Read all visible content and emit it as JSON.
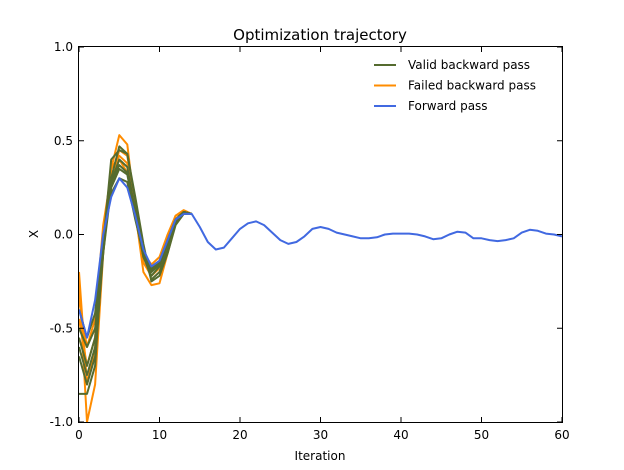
{
  "chart_data": {
    "type": "line",
    "title": "Optimization trajectory",
    "xlabel": "Iteration",
    "ylabel": "X",
    "xlim": [
      0,
      60
    ],
    "ylim": [
      -1.0,
      1.0
    ],
    "xticks": [
      0,
      10,
      20,
      30,
      40,
      50,
      60
    ],
    "xtick_labels": [
      "0",
      "10",
      "20",
      "30",
      "40",
      "50",
      "60"
    ],
    "yticks": [
      -1.0,
      -0.5,
      0.0,
      0.5,
      1.0
    ],
    "ytick_labels": [
      "-1.0",
      "-0.5",
      "0.0",
      "0.5",
      "1.0"
    ],
    "grid": false,
    "legend_position": "top-right",
    "legend": [
      {
        "label": "Valid backward pass",
        "color": "#556b2f"
      },
      {
        "label": "Failed backward pass",
        "color": "#ff8c00"
      },
      {
        "label": "Forward pass",
        "color": "#4169e1"
      }
    ],
    "series": [
      {
        "group": "failed",
        "color": "#ff8c00",
        "x": [
          0,
          1,
          2,
          3,
          4,
          5,
          6,
          7,
          8,
          9,
          10,
          11,
          12,
          13,
          14
        ],
        "y": [
          -0.25,
          -1.0,
          -0.8,
          -0.1,
          0.35,
          0.53,
          0.48,
          0.12,
          -0.2,
          -0.27,
          -0.26,
          -0.1,
          0.06,
          0.11,
          0.11
        ]
      },
      {
        "group": "failed",
        "color": "#ff8c00",
        "x": [
          0,
          1,
          2,
          3,
          4,
          5,
          6,
          7,
          8,
          9,
          10,
          11,
          12,
          13,
          14
        ],
        "y": [
          -0.2,
          -0.8,
          -0.6,
          -0.05,
          0.3,
          0.45,
          0.42,
          0.15,
          -0.12,
          -0.2,
          -0.15,
          -0.02,
          0.1,
          0.13,
          0.11
        ]
      },
      {
        "group": "failed",
        "color": "#ff8c00",
        "x": [
          0,
          1,
          2,
          3,
          4,
          5,
          6,
          7,
          8,
          9,
          10,
          11,
          12,
          13,
          14
        ],
        "y": [
          -0.45,
          -0.7,
          -0.55,
          0.0,
          0.35,
          0.42,
          0.38,
          0.1,
          -0.15,
          -0.22,
          -0.18,
          -0.05,
          0.08,
          0.12,
          0.11
        ]
      },
      {
        "group": "failed",
        "color": "#ff8c00",
        "x": [
          0,
          1,
          2,
          3,
          4,
          5,
          6,
          7,
          8,
          9,
          10,
          11,
          12,
          13,
          14
        ],
        "y": [
          -0.35,
          -0.6,
          -0.45,
          0.05,
          0.32,
          0.4,
          0.33,
          0.12,
          -0.1,
          -0.16,
          -0.12,
          0.0,
          0.1,
          0.12,
          0.11
        ]
      },
      {
        "group": "valid",
        "color": "#556b2f",
        "x": [
          0,
          1,
          2,
          3,
          4,
          5,
          6,
          7,
          8,
          9,
          10,
          11,
          12,
          13,
          14
        ],
        "y": [
          -0.85,
          -0.85,
          -0.7,
          -0.05,
          0.4,
          0.45,
          0.43,
          0.2,
          -0.05,
          -0.25,
          -0.22,
          -0.1,
          0.05,
          0.11,
          0.11
        ]
      },
      {
        "group": "valid",
        "color": "#556b2f",
        "x": [
          0,
          1,
          2,
          3,
          4,
          5,
          6,
          7,
          8,
          9,
          10,
          11,
          12,
          13,
          14
        ],
        "y": [
          -0.65,
          -0.8,
          -0.65,
          -0.1,
          0.3,
          0.47,
          0.43,
          0.18,
          -0.1,
          -0.24,
          -0.2,
          -0.08,
          0.06,
          0.12,
          0.11
        ]
      },
      {
        "group": "valid",
        "color": "#556b2f",
        "x": [
          0,
          1,
          2,
          3,
          4,
          5,
          6,
          7,
          8,
          9,
          10,
          11,
          12,
          13,
          14
        ],
        "y": [
          -0.6,
          -0.75,
          -0.6,
          -0.08,
          0.28,
          0.4,
          0.36,
          0.12,
          -0.12,
          -0.22,
          -0.17,
          -0.05,
          0.07,
          0.12,
          0.11
        ]
      },
      {
        "group": "valid",
        "color": "#556b2f",
        "x": [
          0,
          1,
          2,
          3,
          4,
          5,
          6,
          7,
          8,
          9,
          10,
          11,
          12,
          13,
          14
        ],
        "y": [
          -0.55,
          -0.7,
          -0.55,
          -0.1,
          0.25,
          0.35,
          0.32,
          0.1,
          -0.12,
          -0.2,
          -0.16,
          -0.04,
          0.08,
          0.12,
          0.11
        ]
      },
      {
        "group": "valid",
        "color": "#556b2f",
        "x": [
          0,
          1,
          2,
          3,
          4,
          5,
          6,
          7,
          8,
          9,
          10,
          11,
          12,
          13,
          14
        ],
        "y": [
          -0.5,
          -0.6,
          -0.5,
          -0.05,
          0.27,
          0.37,
          0.33,
          0.1,
          -0.1,
          -0.19,
          -0.15,
          -0.03,
          0.08,
          0.12,
          0.11
        ]
      },
      {
        "group": "valid",
        "color": "#556b2f",
        "x": [
          0,
          1,
          2,
          3,
          4,
          5,
          6,
          7,
          8,
          9,
          10,
          11,
          12,
          13,
          14
        ],
        "y": [
          -0.4,
          -0.55,
          -0.42,
          -0.02,
          0.22,
          0.3,
          0.28,
          0.08,
          -0.1,
          -0.18,
          -0.14,
          -0.03,
          0.08,
          0.12,
          0.11
        ]
      },
      {
        "group": "forward",
        "color": "#4169e1",
        "x": [
          0,
          1,
          2,
          3,
          4,
          5,
          6,
          7,
          8,
          9,
          10,
          11,
          12,
          13,
          14,
          15,
          16,
          17,
          18,
          19,
          20,
          21,
          22,
          23,
          24,
          25,
          26,
          27,
          28,
          29,
          30,
          31,
          32,
          33,
          34,
          35,
          36,
          37,
          38,
          39,
          40,
          41,
          42,
          43,
          44,
          45,
          46,
          47,
          48,
          49,
          50,
          51,
          52,
          53,
          54,
          55,
          56,
          57,
          58,
          59,
          60
        ],
        "y": [
          -0.4,
          -0.55,
          -0.35,
          0.0,
          0.2,
          0.3,
          0.25,
          0.1,
          -0.08,
          -0.17,
          -0.14,
          -0.03,
          0.08,
          0.11,
          0.11,
          0.04,
          -0.04,
          -0.08,
          -0.07,
          -0.02,
          0.03,
          0.06,
          0.07,
          0.05,
          0.01,
          -0.03,
          -0.05,
          -0.04,
          -0.01,
          0.03,
          0.04,
          0.03,
          0.01,
          0.0,
          -0.01,
          -0.02,
          -0.02,
          -0.015,
          0.0,
          0.005,
          0.005,
          0.005,
          0.0,
          -0.01,
          -0.025,
          -0.02,
          0.0,
          0.015,
          0.01,
          -0.02,
          -0.02,
          -0.03,
          -0.035,
          -0.03,
          -0.02,
          0.01,
          0.025,
          0.02,
          0.005,
          0.0,
          -0.01
        ]
      }
    ]
  }
}
